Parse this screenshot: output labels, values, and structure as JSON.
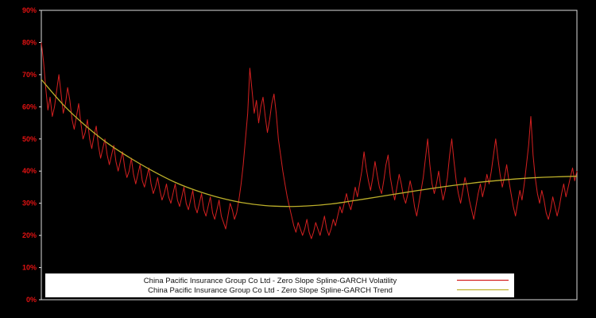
{
  "chart_data": {
    "type": "line",
    "title": "",
    "xlabel": "",
    "ylabel": "",
    "ylim": [
      0,
      90
    ],
    "grid": false,
    "legend_position": "bottom-center-boxed",
    "background_color": "#000000",
    "frame_color": "#dddddd",
    "tick_label_color": "#e31212",
    "legend_box_color": "#ffffff",
    "legend_text_color": "#111111",
    "y_ticks": [
      "0%",
      "10%",
      "20%",
      "30%",
      "40%",
      "50%",
      "60%",
      "70%",
      "80%",
      "90%"
    ],
    "series": [
      {
        "name": "China Pacific Insurance Group Co Ltd - Zero Slope Spline-GARCH Volatility",
        "color": "#d42020",
        "width": 1,
        "values": [
          80,
          74,
          66,
          59,
          63,
          57,
          60,
          65,
          70,
          64,
          58,
          61,
          66,
          62,
          56,
          53,
          57,
          61,
          55,
          50,
          52,
          56,
          50,
          47,
          51,
          54,
          48,
          44,
          47,
          50,
          45,
          42,
          45,
          48,
          43,
          40,
          43,
          46,
          41,
          38,
          40,
          44,
          39,
          36,
          39,
          42,
          37,
          35,
          38,
          41,
          36,
          33,
          35,
          38,
          34,
          31,
          33,
          36,
          32,
          30,
          33,
          36,
          31,
          29,
          32,
          35,
          30,
          28,
          31,
          34,
          29,
          27,
          30,
          33,
          28,
          26,
          29,
          32,
          27,
          25,
          28,
          31,
          26,
          24,
          22,
          26,
          30,
          28,
          25,
          27,
          31,
          36,
          42,
          50,
          58,
          72,
          65,
          58,
          62,
          55,
          60,
          63,
          57,
          52,
          56,
          61,
          64,
          58,
          50,
          45,
          40,
          36,
          32,
          29,
          26,
          23,
          21,
          24,
          22,
          20,
          22,
          25,
          21,
          19,
          21,
          24,
          22,
          20,
          23,
          26,
          22,
          20,
          22,
          25,
          23,
          26,
          29,
          27,
          30,
          33,
          30,
          28,
          31,
          35,
          32,
          36,
          40,
          46,
          41,
          37,
          34,
          38,
          43,
          39,
          35,
          33,
          37,
          42,
          45,
          38,
          34,
          31,
          35,
          39,
          36,
          32,
          30,
          33,
          37,
          34,
          29,
          26,
          30,
          34,
          38,
          44,
          50,
          42,
          36,
          33,
          36,
          40,
          35,
          31,
          34,
          38,
          45,
          50,
          43,
          37,
          33,
          30,
          34,
          38,
          35,
          31,
          28,
          25,
          29,
          33,
          36,
          32,
          35,
          39,
          36,
          40,
          45,
          50,
          44,
          39,
          35,
          38,
          42,
          37,
          33,
          29,
          26,
          30,
          34,
          31,
          36,
          42,
          48,
          57,
          45,
          38,
          33,
          30,
          34,
          31,
          27,
          25,
          28,
          32,
          29,
          26,
          29,
          33,
          36,
          32,
          35,
          38,
          41,
          37,
          40
        ]
      },
      {
        "name": "China Pacific Insurance Group Co Ltd - Zero Slope Spline-GARCH Trend",
        "color": "#bdb02a",
        "width": 1.3,
        "values": [
          68.5,
          60.5,
          54,
          48.5,
          44,
          40,
          36.5,
          33.8,
          31.7,
          30.2,
          29.3,
          29,
          29.2,
          29.8,
          30.8,
          31.9,
          33,
          34.1,
          35.1,
          36,
          36.8,
          37.4,
          37.9,
          38.2,
          38.4
        ]
      }
    ]
  }
}
